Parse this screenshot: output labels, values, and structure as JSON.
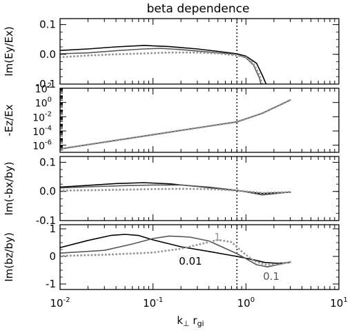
{
  "figure": {
    "title": "beta dependence",
    "xlabel_main": "k",
    "xlabel_sub_perp": "⊥",
    "xlabel_mid": " r",
    "xlabel_sub_gi": "gi"
  },
  "colors": {
    "beta_0_01": "#000000",
    "beta_0_1": "#555555",
    "beta_1": "#999999",
    "axes": "#000000",
    "marker_line": "#000000"
  },
  "chart_data": [
    {
      "type": "line",
      "title": "beta dependence",
      "ylabel": "Im(Ey/Ex)",
      "xlabel": "",
      "xscale": "log",
      "xlim": [
        0.01,
        10
      ],
      "ylim": [
        -0.1,
        0.12
      ],
      "yticks": [
        -0.1,
        0.0,
        0.1
      ],
      "ytick_labels": [
        "-0.1",
        "0.0",
        "0.1"
      ],
      "vline_x": 0.8,
      "series": [
        {
          "style": "solid",
          "color": "#000000",
          "x": [
            0.01,
            0.02,
            0.04,
            0.08,
            0.15,
            0.3,
            0.5,
            0.8,
            1.0,
            1.3,
            1.5,
            1.7,
            1.85
          ],
          "y": [
            0.013,
            0.018,
            0.025,
            0.03,
            0.026,
            0.018,
            0.01,
            0.002,
            -0.006,
            -0.03,
            -0.07,
            -0.11,
            -0.16
          ]
        },
        {
          "style": "solid",
          "color": "#555555",
          "x": [
            0.01,
            0.02,
            0.04,
            0.08,
            0.12,
            0.2,
            0.4,
            0.8,
            1.0,
            1.2,
            1.4,
            1.55
          ],
          "y": [
            0.002,
            0.005,
            0.012,
            0.018,
            0.02,
            0.016,
            0.008,
            0.0,
            -0.012,
            -0.035,
            -0.08,
            -0.14
          ]
        },
        {
          "style": "dotted",
          "color": "#999999",
          "x": [
            0.01,
            0.02,
            0.04,
            0.08,
            0.15,
            0.3,
            0.5,
            0.8,
            1.0,
            1.2,
            1.4,
            1.6
          ],
          "y": [
            -0.01,
            -0.004,
            0.0,
            0.003,
            0.006,
            0.006,
            0.003,
            -0.004,
            -0.01,
            -0.03,
            -0.07,
            -0.13
          ]
        }
      ]
    },
    {
      "type": "line",
      "ylabel": "-Ez/Ex",
      "xlabel": "",
      "xscale": "log",
      "yscale": "log",
      "xlim": [
        0.01,
        10
      ],
      "ylim": [
        1e-07,
        100
      ],
      "ytick_bases": [
        "10",
        "10",
        "10",
        "10",
        "10"
      ],
      "ytick_exponents": [
        "2",
        "0",
        "-2",
        "-4",
        "-6"
      ],
      "ytick_values": [
        100,
        1,
        0.01,
        0.0001,
        1e-06
      ],
      "vline_x": 0.8,
      "series": [
        {
          "style": "solid",
          "color": "#000000",
          "x": [
            0.01,
            0.03,
            0.1,
            0.3,
            0.8,
            1.5,
            3.0
          ],
          "y": [
            3e-07,
            2.7e-06,
            3e-05,
            0.00027,
            0.0019,
            0.03,
            2.2
          ]
        },
        {
          "style": "solid",
          "color": "#555555",
          "x": [
            0.01,
            0.03,
            0.1,
            0.3,
            0.8,
            1.5,
            3.0
          ],
          "y": [
            3e-07,
            2.7e-06,
            3e-05,
            0.00027,
            0.0019,
            0.03,
            2.2
          ]
        },
        {
          "style": "dotted",
          "color": "#999999",
          "x": [
            0.01,
            0.03,
            0.1,
            0.3,
            0.8,
            1.5,
            3.0
          ],
          "y": [
            3e-07,
            2.7e-06,
            3e-05,
            0.00027,
            0.0019,
            0.03,
            2.2
          ]
        }
      ]
    },
    {
      "type": "line",
      "ylabel": "Im(-bx/by)",
      "xlabel": "",
      "xscale": "log",
      "xlim": [
        0.01,
        10
      ],
      "ylim": [
        -0.1,
        0.12
      ],
      "yticks": [
        -0.1,
        0.0,
        0.1
      ],
      "ytick_labels": [
        "-0.1",
        "0.0",
        "0.1"
      ],
      "vline_x": 0.8,
      "series": [
        {
          "style": "solid",
          "color": "#000000",
          "x": [
            0.01,
            0.02,
            0.04,
            0.08,
            0.15,
            0.3,
            0.5,
            0.8,
            1.2,
            1.5,
            2.0,
            3.0
          ],
          "y": [
            0.015,
            0.021,
            0.027,
            0.03,
            0.026,
            0.017,
            0.01,
            0.003,
            -0.004,
            -0.007,
            -0.005,
            -0.003
          ]
        },
        {
          "style": "solid",
          "color": "#555555",
          "x": [
            0.01,
            0.02,
            0.05,
            0.1,
            0.2,
            0.4,
            0.8,
            1.2,
            1.5,
            2.0,
            3.0
          ],
          "y": [
            0.012,
            0.016,
            0.02,
            0.022,
            0.022,
            0.015,
            0.004,
            -0.006,
            -0.012,
            -0.008,
            -0.002
          ]
        },
        {
          "style": "dotted",
          "color": "#999999",
          "x": [
            0.01,
            0.02,
            0.05,
            0.1,
            0.2,
            0.4,
            0.8,
            1.2,
            1.5,
            2.0,
            3.0
          ],
          "y": [
            0.003,
            0.004,
            0.006,
            0.008,
            0.009,
            0.008,
            0.003,
            -0.002,
            -0.005,
            -0.004,
            -0.002
          ]
        }
      ]
    },
    {
      "type": "line",
      "ylabel": "Im(bz/by)",
      "xlabel": "k⊥ rgi",
      "xscale": "log",
      "xlim": [
        0.01,
        10
      ],
      "ylim": [
        -1.2,
        1.15
      ],
      "yticks": [
        -1,
        0,
        1
      ],
      "ytick_labels": [
        "-1",
        "0",
        "1"
      ],
      "xticks": [
        0.01,
        0.1,
        1,
        10
      ],
      "xtick_bases": [
        "10",
        "10",
        "10",
        "10"
      ],
      "xtick_exponents": [
        "-2",
        "-1",
        "0",
        "1"
      ],
      "vline_x": 0.8,
      "annotations": [
        "0.01",
        "0.1",
        "1"
      ],
      "series": [
        {
          "name": "0.01",
          "style": "solid",
          "color": "#000000",
          "x": [
            0.01,
            0.02,
            0.035,
            0.05,
            0.07,
            0.1,
            0.2,
            0.4,
            0.8,
            1.2,
            1.6,
            2.2,
            3.0
          ],
          "y": [
            0.32,
            0.58,
            0.76,
            0.8,
            0.76,
            0.6,
            0.35,
            0.18,
            0.0,
            -0.12,
            -0.22,
            -0.25,
            -0.22
          ]
        },
        {
          "name": "0.1",
          "style": "solid",
          "color": "#555555",
          "x": [
            0.01,
            0.03,
            0.06,
            0.1,
            0.15,
            0.25,
            0.4,
            0.8,
            1.0,
            1.3,
            1.7,
            2.2,
            3.0
          ],
          "y": [
            0.12,
            0.22,
            0.45,
            0.65,
            0.74,
            0.7,
            0.56,
            0.1,
            -0.08,
            -0.3,
            -0.38,
            -0.3,
            -0.2
          ]
        },
        {
          "name": "1",
          "style": "dotted",
          "color": "#999999",
          "x": [
            0.01,
            0.03,
            0.1,
            0.2,
            0.3,
            0.5,
            0.7,
            0.9,
            1.2,
            1.6,
            2.2,
            3.0
          ],
          "y": [
            0.02,
            0.06,
            0.14,
            0.28,
            0.42,
            0.6,
            0.52,
            0.18,
            -0.15,
            -0.3,
            -0.3,
            -0.2
          ]
        }
      ]
    }
  ]
}
